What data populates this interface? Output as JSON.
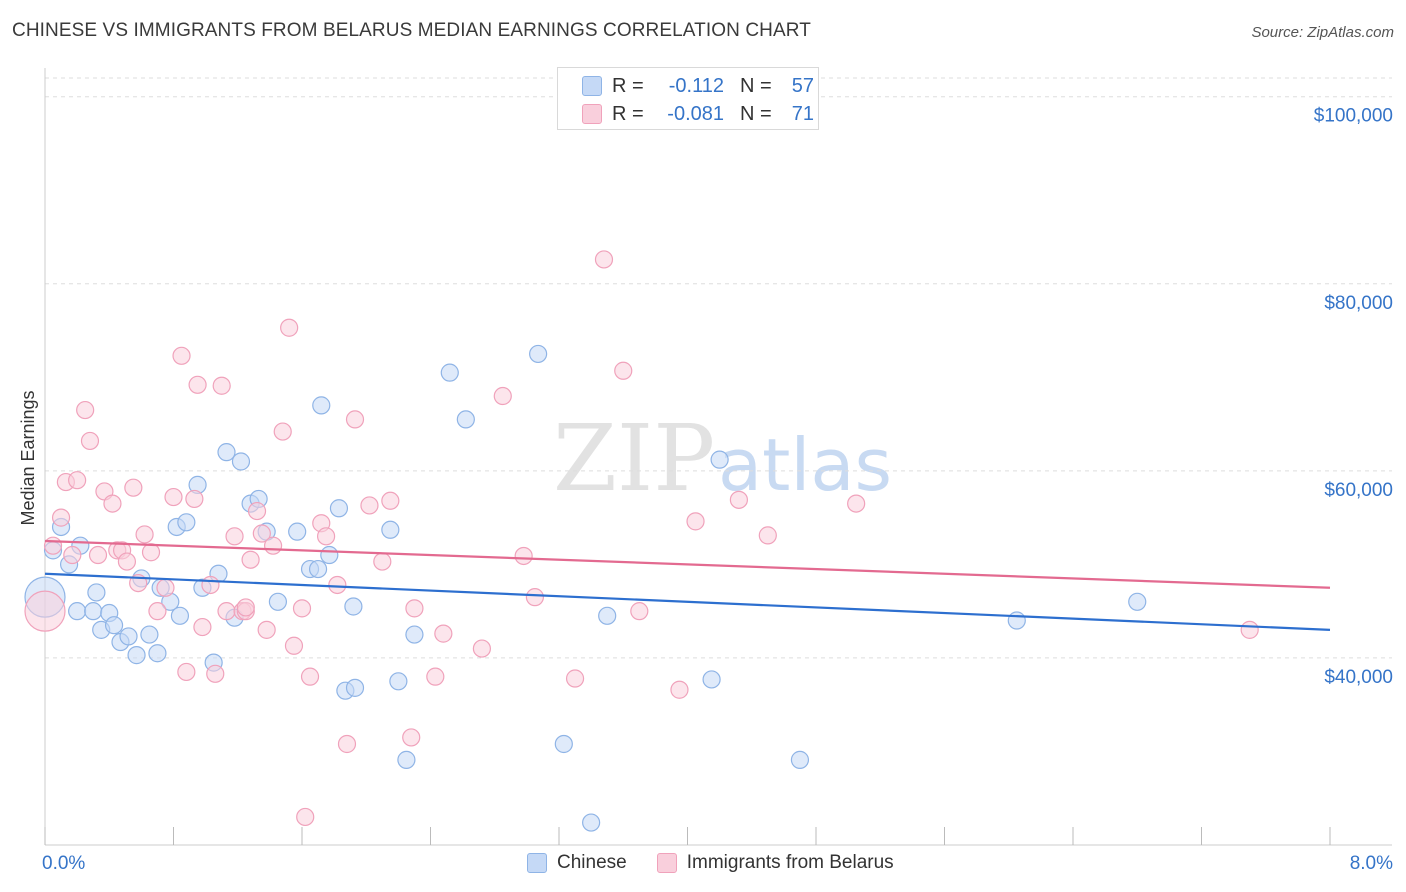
{
  "title": "CHINESE VS IMMIGRANTS FROM BELARUS MEDIAN EARNINGS CORRELATION CHART",
  "source": "Source: ZipAtlas.com",
  "watermark": {
    "zip": "ZIP",
    "atlas": "atlas"
  },
  "colors": {
    "chinese_fill": "#c5d9f6",
    "chinese_stroke": "#8fb4e6",
    "chinese_line": "#2d6fcf",
    "belarus_fill": "#f9cfdc",
    "belarus_stroke": "#f0a2bb",
    "belarus_line": "#e36a90",
    "axis_label": "#3574c8",
    "grid": "#dddddd"
  },
  "legend": {
    "rows": [
      {
        "series": "Chinese",
        "r_label": "R =",
        "r_value": "-0.112",
        "n_label": "N =",
        "n_value": "57"
      },
      {
        "series": "Immigrants from Belarus",
        "r_label": "R =",
        "r_value": "-0.081",
        "n_label": "N =",
        "n_value": "71"
      }
    ]
  },
  "bottom_legend": [
    "Chinese",
    "Immigrants from Belarus"
  ],
  "chart_data": {
    "type": "scatter",
    "title": "CHINESE VS IMMIGRANTS FROM BELARUS MEDIAN EARNINGS CORRELATION CHART",
    "xlabel": "",
    "ylabel": "Median Earnings",
    "xlim": [
      0,
      8
    ],
    "ylim": [
      20000,
      102000
    ],
    "x_tick_labels": [
      "0.0%",
      "8.0%"
    ],
    "y_ticks": [
      40000,
      60000,
      80000,
      100000
    ],
    "y_tick_labels": [
      "$40,000",
      "$60,000",
      "$80,000",
      "$100,000"
    ],
    "grid": "horizontal dashed",
    "legend_position": "top-center",
    "series": [
      {
        "name": "Chinese",
        "trend": {
          "x": [
            0,
            8
          ],
          "y": [
            49000,
            43000
          ]
        },
        "points": [
          [
            0.0,
            46500
          ],
          [
            0.05,
            51500
          ],
          [
            0.1,
            54000
          ],
          [
            0.15,
            50000
          ],
          [
            0.2,
            45000
          ],
          [
            0.22,
            52000
          ],
          [
            0.3,
            45000
          ],
          [
            0.32,
            47000
          ],
          [
            0.35,
            43000
          ],
          [
            0.4,
            44800
          ],
          [
            0.43,
            43500
          ],
          [
            0.47,
            41700
          ],
          [
            0.52,
            42300
          ],
          [
            0.57,
            40300
          ],
          [
            0.6,
            48500
          ],
          [
            0.65,
            42500
          ],
          [
            0.7,
            40500
          ],
          [
            0.72,
            47500
          ],
          [
            0.78,
            46000
          ],
          [
            0.82,
            54000
          ],
          [
            0.84,
            44500
          ],
          [
            0.88,
            54500
          ],
          [
            0.95,
            58500
          ],
          [
            0.98,
            47500
          ],
          [
            1.05,
            39500
          ],
          [
            1.08,
            49000
          ],
          [
            1.13,
            62000
          ],
          [
            1.18,
            44300
          ],
          [
            1.22,
            61000
          ],
          [
            1.28,
            56500
          ],
          [
            1.33,
            57000
          ],
          [
            1.38,
            53500
          ],
          [
            1.45,
            46000
          ],
          [
            1.57,
            53500
          ],
          [
            1.65,
            49500
          ],
          [
            1.7,
            49500
          ],
          [
            1.72,
            67000
          ],
          [
            1.77,
            51000
          ],
          [
            1.83,
            56000
          ],
          [
            1.87,
            36500
          ],
          [
            1.92,
            45500
          ],
          [
            1.93,
            36800
          ],
          [
            2.15,
            53700
          ],
          [
            2.2,
            37500
          ],
          [
            2.25,
            29100
          ],
          [
            2.3,
            42500
          ],
          [
            2.52,
            70500
          ],
          [
            2.62,
            65500
          ],
          [
            3.07,
            72500
          ],
          [
            3.23,
            30800
          ],
          [
            3.4,
            22400
          ],
          [
            3.5,
            44500
          ],
          [
            4.15,
            37700
          ],
          [
            4.2,
            61200
          ],
          [
            4.7,
            29100
          ],
          [
            6.05,
            44000
          ],
          [
            6.8,
            46000
          ]
        ]
      },
      {
        "name": "Immigrants from Belarus",
        "trend": {
          "x": [
            0,
            8
          ],
          "y": [
            52500,
            47500
          ]
        },
        "points": [
          [
            0.0,
            45000
          ],
          [
            0.05,
            52000
          ],
          [
            0.1,
            55000
          ],
          [
            0.13,
            58800
          ],
          [
            0.17,
            51000
          ],
          [
            0.2,
            59000
          ],
          [
            0.25,
            66500
          ],
          [
            0.28,
            63200
          ],
          [
            0.33,
            51000
          ],
          [
            0.37,
            57800
          ],
          [
            0.42,
            56500
          ],
          [
            0.45,
            51500
          ],
          [
            0.48,
            51500
          ],
          [
            0.51,
            50300
          ],
          [
            0.55,
            58200
          ],
          [
            0.58,
            48000
          ],
          [
            0.62,
            53200
          ],
          [
            0.66,
            51300
          ],
          [
            0.7,
            45000
          ],
          [
            0.75,
            47500
          ],
          [
            0.8,
            57200
          ],
          [
            0.85,
            72300
          ],
          [
            0.88,
            38500
          ],
          [
            0.93,
            57000
          ],
          [
            0.95,
            69200
          ],
          [
            0.98,
            43300
          ],
          [
            1.03,
            47800
          ],
          [
            1.06,
            38300
          ],
          [
            1.1,
            69100
          ],
          [
            1.13,
            45000
          ],
          [
            1.18,
            53000
          ],
          [
            1.23,
            45000
          ],
          [
            1.25,
            45000
          ],
          [
            1.28,
            50500
          ],
          [
            1.32,
            55700
          ],
          [
            1.35,
            53300
          ],
          [
            1.38,
            43000
          ],
          [
            1.42,
            52000
          ],
          [
            1.48,
            64200
          ],
          [
            1.52,
            75300
          ],
          [
            1.55,
            41300
          ],
          [
            1.6,
            45300
          ],
          [
            1.65,
            38000
          ],
          [
            1.72,
            54400
          ],
          [
            1.75,
            53000
          ],
          [
            1.82,
            47800
          ],
          [
            1.88,
            30800
          ],
          [
            1.93,
            65500
          ],
          [
            2.02,
            56300
          ],
          [
            2.1,
            50300
          ],
          [
            2.15,
            56800
          ],
          [
            2.28,
            31500
          ],
          [
            2.3,
            45300
          ],
          [
            2.43,
            38000
          ],
          [
            2.48,
            42600
          ],
          [
            2.72,
            41000
          ],
          [
            2.85,
            68000
          ],
          [
            2.98,
            50900
          ],
          [
            3.05,
            46500
          ],
          [
            3.3,
            37800
          ],
          [
            3.48,
            82600
          ],
          [
            3.6,
            70700
          ],
          [
            3.7,
            45000
          ],
          [
            3.95,
            36600
          ],
          [
            4.05,
            54600
          ],
          [
            4.32,
            56900
          ],
          [
            4.5,
            53100
          ],
          [
            5.05,
            56500
          ],
          [
            1.62,
            23000
          ],
          [
            7.5,
            43000
          ],
          [
            1.25,
            45400
          ]
        ]
      }
    ]
  }
}
